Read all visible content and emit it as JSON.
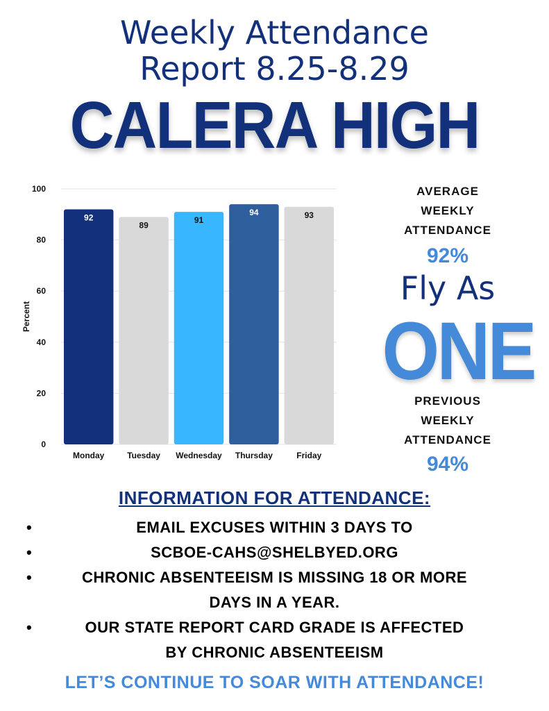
{
  "header": {
    "title_line1": "Weekly Attendance",
    "title_line2": "Report 8.25-8.29",
    "school": "CALERA HIGH"
  },
  "chart_data": {
    "type": "bar",
    "categories": [
      "Monday",
      "Tuesday",
      "Wednesday",
      "Thursday",
      "Friday"
    ],
    "values": [
      92,
      89,
      91,
      94,
      93
    ],
    "colors": [
      "#13307a",
      "#d9d9d9",
      "#38b6ff",
      "#2e5e9c",
      "#d9d9d9"
    ],
    "label_colors": [
      "#ffffff",
      "#111111",
      "#111111",
      "#ffffff",
      "#111111"
    ],
    "ylabel": "Percent",
    "xlabel": "",
    "ylim": [
      0,
      100
    ],
    "yticks": [
      0,
      20,
      40,
      60,
      80,
      100
    ],
    "grid": true
  },
  "sidebar": {
    "avg_label": [
      "AVERAGE",
      "WEEKLY",
      "ATTENDANCE"
    ],
    "avg_value": "92%",
    "slogan_line1": "Fly As",
    "slogan_line2": "ONE",
    "prev_label": [
      "PREVIOUS",
      "WEEKLY",
      "ATTENDANCE"
    ],
    "prev_value": "94%"
  },
  "info": {
    "heading": "INFORMATION FOR ATTENDANCE:",
    "lines": [
      {
        "bullet": true,
        "text": "EMAIL EXCUSES WITHIN 3 DAYS TO"
      },
      {
        "bullet": true,
        "text": "SCBOE-CAHS@SHELBYED.ORG"
      },
      {
        "bullet": true,
        "text": "CHRONIC ABSENTEEISM IS MISSING 18 OR MORE"
      },
      {
        "bullet": false,
        "text": "DAYS IN A YEAR."
      },
      {
        "bullet": true,
        "text": "OUR STATE REPORT CARD GRADE IS AFFECTED"
      },
      {
        "bullet": false,
        "text": "BY CHRONIC ABSENTEEISM"
      }
    ],
    "bullet_char": "•"
  },
  "footer": "LET’S CONTINUE TO SOAR WITH ATTENDANCE!"
}
